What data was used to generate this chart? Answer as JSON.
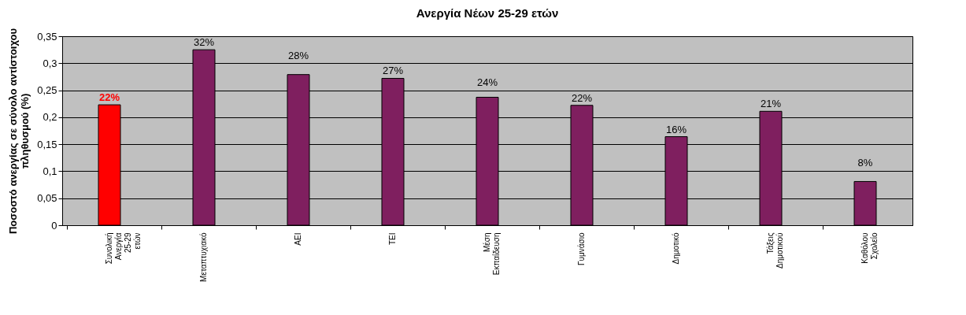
{
  "chart_data": {
    "type": "bar",
    "title": "Ανεργία Νέων 25-29 ετών",
    "ylabel": "Ποσοστό ανεργίας σε σύνολο αντίστοιχου πληθυσμού (%)",
    "categories": [
      "Συνολική Ανεργία 25-29 ετών",
      "Μεταπτυχιακό",
      "ΑΕΙ",
      "ΤΕΙ",
      "Μέση Εκπαίδευση",
      "Γυμνάσιο",
      "Δημοτικό",
      "Τάξεις Δημοτικού",
      "Καθόλου Σχολείο"
    ],
    "values": [
      0.223,
      0.325,
      0.279,
      0.272,
      0.237,
      0.222,
      0.164,
      0.211,
      0.081
    ],
    "colors": [
      "#ff0000",
      "#7f1f5f",
      "#7f1f5f",
      "#7f1f5f",
      "#7f1f5f",
      "#7f1f5f",
      "#7f1f5f",
      "#7f1f5f",
      "#7f1f5f"
    ],
    "value_labels": [
      "22%",
      "32%",
      "28%",
      "27%",
      "24%",
      "22%",
      "16%",
      "21%",
      "8%"
    ],
    "ylim": [
      0,
      0.35
    ],
    "yticks": [
      0,
      {
        "value": 0.05,
        "label": "0,05"
      },
      {
        "value": 0.1,
        "label": "0,1"
      },
      {
        "value": 0.15,
        "label": "0,15"
      },
      {
        "value": 0.2,
        "label": "0,2"
      },
      {
        "value": 0.25,
        "label": "0,25"
      },
      {
        "value": 0.3,
        "label": "0,3"
      },
      {
        "value": 0.35,
        "label": "0,35"
      }
    ],
    "grid": "y",
    "legend": false
  }
}
